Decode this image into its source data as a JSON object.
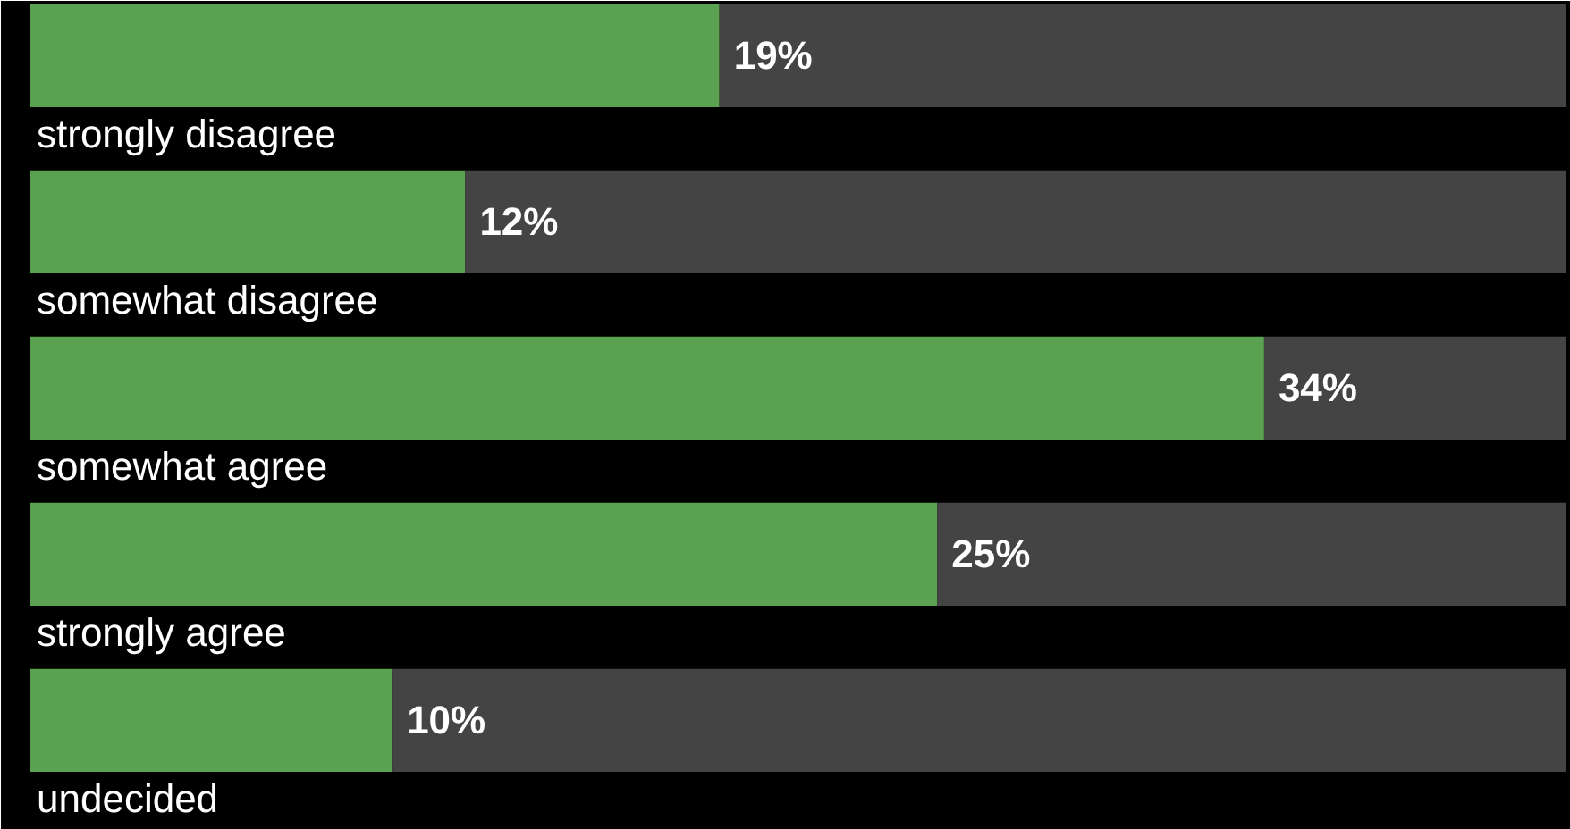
{
  "chart_data": {
    "type": "bar",
    "orientation": "horizontal",
    "stacked": true,
    "categories": [
      "strongly disagree",
      "somewhat disagree",
      "somewhat agree",
      "strongly agree",
      "undecided"
    ],
    "series": [
      {
        "color": "#5aa151",
        "values": [
          19,
          12,
          34,
          25,
          10
        ],
        "value_labels": [
          "19%",
          "12%",
          "34%",
          "25%",
          "10%"
        ]
      },
      {
        "color": "#444444",
        "values": [
          23.3,
          30.3,
          8.3,
          17.3,
          32.3
        ]
      }
    ],
    "xlim": [
      0,
      42.3
    ],
    "tick_labels": false,
    "grid": false
  }
}
